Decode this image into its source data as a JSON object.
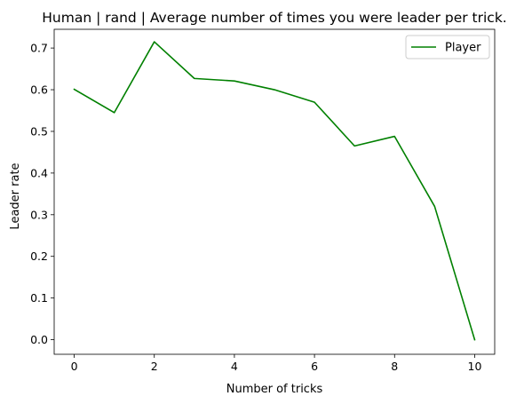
{
  "chart_data": {
    "type": "line",
    "title": "Human | rand | Average number of times you were leader per trick.",
    "xlabel": "Number of tricks",
    "ylabel": "Leader rate",
    "xlim": [
      -0.5,
      10.5
    ],
    "ylim": [
      -0.035,
      0.745
    ],
    "x_ticks": [
      0,
      2,
      4,
      6,
      8,
      10
    ],
    "y_ticks": [
      0.0,
      0.1,
      0.2,
      0.3,
      0.4,
      0.5,
      0.6,
      0.7
    ],
    "x_tick_labels": [
      "0",
      "2",
      "4",
      "6",
      "8",
      "10"
    ],
    "y_tick_labels": [
      "0.0",
      "0.1",
      "0.2",
      "0.3",
      "0.4",
      "0.5",
      "0.6",
      "0.7"
    ],
    "grid": false,
    "legend_position": "top-right",
    "series": [
      {
        "name": "Player",
        "color": "#008000",
        "x": [
          0,
          1,
          2,
          3,
          4,
          5,
          6,
          7,
          8,
          9,
          10
        ],
        "y": [
          0.601,
          0.545,
          0.715,
          0.627,
          0.621,
          0.6,
          0.57,
          0.465,
          0.488,
          0.32,
          0.0
        ]
      }
    ]
  }
}
